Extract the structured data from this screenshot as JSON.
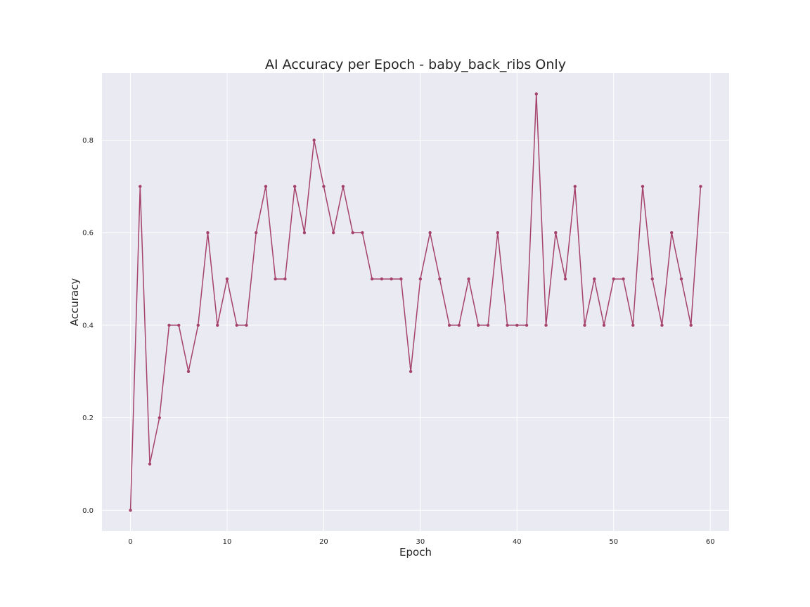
{
  "chart_data": {
    "type": "line",
    "title": "AI Accuracy per Epoch - baby_back_ribs Only",
    "xlabel": "Epoch",
    "ylabel": "Accuracy",
    "xlim": [
      -2.95,
      61.95
    ],
    "ylim": [
      -0.045,
      0.945
    ],
    "xticks": [
      0,
      10,
      20,
      30,
      40,
      50,
      60
    ],
    "xtick_labels": [
      "0",
      "10",
      "20",
      "30",
      "40",
      "50",
      "60"
    ],
    "yticks": [
      0.0,
      0.2,
      0.4,
      0.6,
      0.8
    ],
    "ytick_labels": [
      "0.0",
      "0.2",
      "0.4",
      "0.6",
      "0.8"
    ],
    "grid": true,
    "legend": false,
    "colors": {
      "line": "#a5436c",
      "plot_background": "#eaeaf2",
      "grid": "#ffffff"
    },
    "series": [
      {
        "x": [
          0,
          1,
          2,
          3,
          4,
          5,
          6,
          7,
          8,
          9,
          10,
          11,
          12,
          13,
          14,
          15,
          16,
          17,
          18,
          19,
          20,
          21,
          22,
          23,
          24,
          25,
          26,
          27,
          28,
          29,
          30,
          31,
          32,
          33,
          34,
          35,
          36,
          37,
          38,
          39,
          40,
          41,
          42,
          43,
          44,
          45,
          46,
          47,
          48,
          49,
          50,
          51,
          52,
          53,
          54,
          55,
          56,
          57,
          58,
          59
        ],
        "values": [
          0.0,
          0.7,
          0.1,
          0.2,
          0.4,
          0.4,
          0.3,
          0.4,
          0.6,
          0.4,
          0.5,
          0.4,
          0.4,
          0.6,
          0.7,
          0.5,
          0.5,
          0.7,
          0.6,
          0.8,
          0.7,
          0.6,
          0.7,
          0.6,
          0.6,
          0.5,
          0.5,
          0.5,
          0.5,
          0.3,
          0.5,
          0.6,
          0.5,
          0.4,
          0.4,
          0.5,
          0.4,
          0.4,
          0.6,
          0.4,
          0.4,
          0.4,
          0.9,
          0.4,
          0.6,
          0.5,
          0.7,
          0.4,
          0.5,
          0.4,
          0.5,
          0.5,
          0.4,
          0.7,
          0.5,
          0.4,
          0.6,
          0.5,
          0.4,
          0.7
        ]
      }
    ]
  }
}
